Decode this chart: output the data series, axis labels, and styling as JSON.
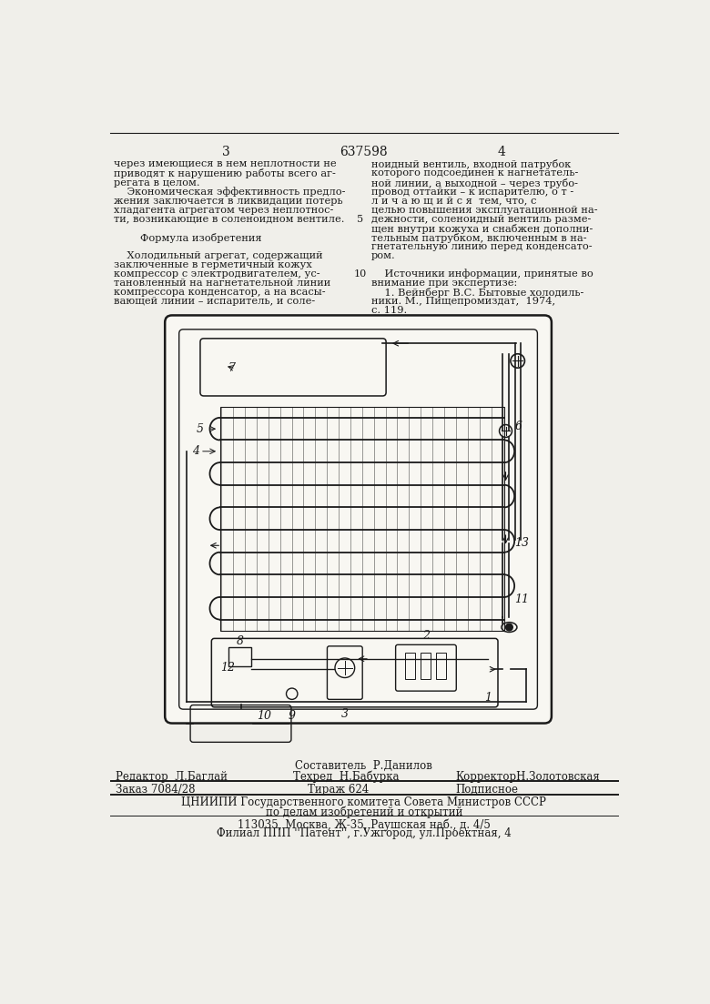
{
  "bg_color": "#f0efea",
  "page_color": "#f8f7f2",
  "text_color": "#1a1a1a",
  "header_number_left": "3",
  "header_center": "637598",
  "header_number_right": "4",
  "col1_text": [
    "через имеющиеся в нем неплотности не",
    "приводят к нарушению работы всего аг-",
    "регата в целом.",
    "    Экономическая эффективность предло-",
    "жения заключается в ликвидации потерь",
    "хладагента агрегатом через неплотнос-",
    "ти, возникающие в соленоидном вентиле.",
    "",
    "        Формула изобретения",
    "",
    "    Холодильный агрегат, содержащий",
    "заключенные в герметичный кожух",
    "компрессор с электродвигателем, ус-",
    "тановленный на нагнетательной линии",
    "компрессора конденсатор, а на всасы-",
    "вающей линии – испаритель, и соле-"
  ],
  "col2_text": [
    "ноидный вентиль, входной патрубок",
    "которого подсоединен к нагнетатель-",
    "ной линии, а выходной – через трубо-",
    "провод оттайки – к испарителю, о т -",
    "л и ч а ю щ и й с я  тем, что, с",
    "целью повышения эксплуатационной на-",
    "дежности, соленоидный вентиль разме-",
    "щен внутри кожуха и снабжен дополни-",
    "тельным патрубком, включенным в на-",
    "гнетательную линию перед конденсато-",
    "ром.",
    "",
    "    Источники информации, принятые во",
    "внимание при экспертизе:",
    "    1. Вейнберг В.С. Бытовые холодиль-",
    "ники. М., Пищепромиздат,  1974,",
    "с. 119."
  ],
  "line_numbers": [
    "5",
    "10"
  ],
  "footer_composer": "Составитель  Р.Данилов",
  "footer_editor": "Редактор  Л.Баглай",
  "footer_tech": "Техред  Н.Бабурка",
  "footer_corrector": "КорректорН.Золотовская",
  "footer_order": "Заказ 7084/28",
  "footer_circulation": "Тираж 624",
  "footer_subscription": "Подписное",
  "footer_institute1": "ЦНИИПИ Государственного комитета Совета Министров СССР",
  "footer_institute2": "по делам изобретений и открытий",
  "footer_address": "113035, Москва, Ж-35, Раушская наб., д. 4/5",
  "footer_branch": "Филиал ППП ''Патент'', г.Ужгород, ул.Проектная, 4"
}
